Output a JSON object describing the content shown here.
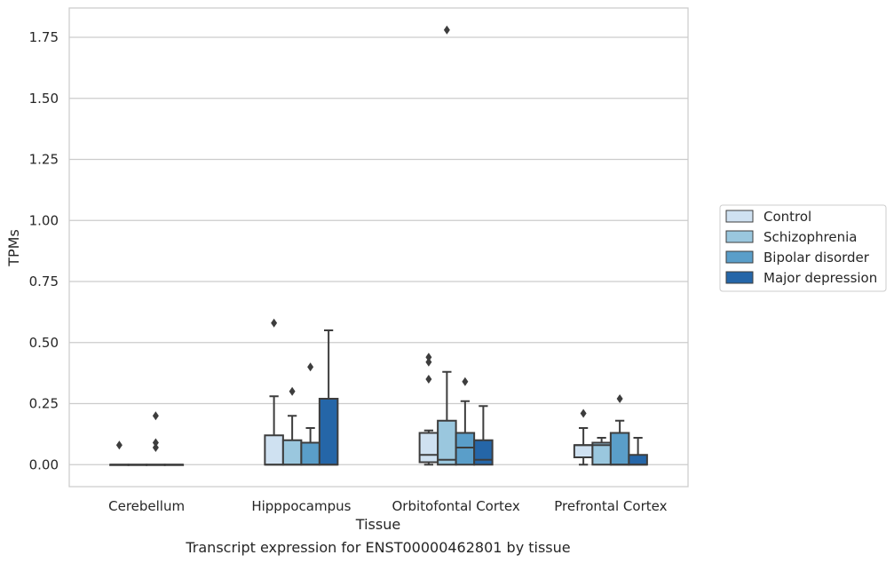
{
  "chart_data": {
    "type": "box",
    "ylabel": "TPMs",
    "xlabel": "Tissue",
    "caption": "Transcript expression for ENST00000462801 by tissue",
    "ylim": [
      -0.09,
      1.87
    ],
    "yticks": [
      "0.00",
      "0.25",
      "0.50",
      "0.75",
      "1.00",
      "1.25",
      "1.50",
      "1.75"
    ],
    "grid": "horizontal",
    "legend_position": "right",
    "categories": [
      "Cerebellum",
      "Hipppocampus",
      "Orbitofontal Cortex",
      "Prefrontal Cortex"
    ],
    "series": [
      {
        "name": "Control",
        "color": "#cfe1f1",
        "boxes": [
          {
            "whislo": 0.0,
            "q1": 0.0,
            "med": 0.0,
            "q3": 0.0,
            "whishi": 0.0,
            "fliers": [
              0.08
            ]
          },
          {
            "whislo": 0.0,
            "q1": 0.0,
            "med": 0.0,
            "q3": 0.12,
            "whishi": 0.28,
            "fliers": [
              0.58
            ]
          },
          {
            "whislo": 0.0,
            "q1": 0.01,
            "med": 0.04,
            "q3": 0.13,
            "whishi": 0.14,
            "fliers": [
              0.35,
              0.42,
              0.44
            ]
          },
          {
            "whislo": 0.0,
            "q1": 0.03,
            "med": 0.08,
            "q3": 0.08,
            "whishi": 0.15,
            "fliers": [
              0.21
            ]
          }
        ]
      },
      {
        "name": "Schizophrenia",
        "color": "#9ac7de",
        "boxes": [
          {
            "whislo": 0.0,
            "q1": 0.0,
            "med": 0.0,
            "q3": 0.0,
            "whishi": 0.0,
            "fliers": []
          },
          {
            "whislo": 0.0,
            "q1": 0.0,
            "med": 0.0,
            "q3": 0.1,
            "whishi": 0.2,
            "fliers": [
              0.3
            ]
          },
          {
            "whislo": 0.0,
            "q1": 0.0,
            "med": 0.02,
            "q3": 0.18,
            "whishi": 0.38,
            "fliers": [
              1.78
            ]
          },
          {
            "whislo": 0.0,
            "q1": 0.0,
            "med": 0.08,
            "q3": 0.09,
            "whishi": 0.11,
            "fliers": []
          }
        ]
      },
      {
        "name": "Bipolar disorder",
        "color": "#5a9ec9",
        "boxes": [
          {
            "whislo": 0.0,
            "q1": 0.0,
            "med": 0.0,
            "q3": 0.0,
            "whishi": 0.0,
            "fliers": [
              0.07,
              0.09,
              0.2
            ]
          },
          {
            "whislo": 0.0,
            "q1": 0.0,
            "med": 0.0,
            "q3": 0.09,
            "whishi": 0.15,
            "fliers": [
              0.4
            ]
          },
          {
            "whislo": 0.0,
            "q1": 0.0,
            "med": 0.07,
            "q3": 0.13,
            "whishi": 0.26,
            "fliers": [
              0.34
            ]
          },
          {
            "whislo": 0.0,
            "q1": 0.0,
            "med": 0.0,
            "q3": 0.13,
            "whishi": 0.18,
            "fliers": [
              0.27
            ]
          }
        ]
      },
      {
        "name": "Major depression",
        "color": "#2566a8",
        "boxes": [
          {
            "whislo": 0.0,
            "q1": 0.0,
            "med": 0.0,
            "q3": 0.0,
            "whishi": 0.0,
            "fliers": []
          },
          {
            "whislo": 0.0,
            "q1": 0.0,
            "med": 0.0,
            "q3": 0.27,
            "whishi": 0.55,
            "fliers": []
          },
          {
            "whislo": 0.0,
            "q1": 0.0,
            "med": 0.02,
            "q3": 0.1,
            "whishi": 0.24,
            "fliers": []
          },
          {
            "whislo": 0.0,
            "q1": 0.0,
            "med": 0.0,
            "q3": 0.04,
            "whishi": 0.11,
            "fliers": []
          }
        ]
      }
    ]
  }
}
